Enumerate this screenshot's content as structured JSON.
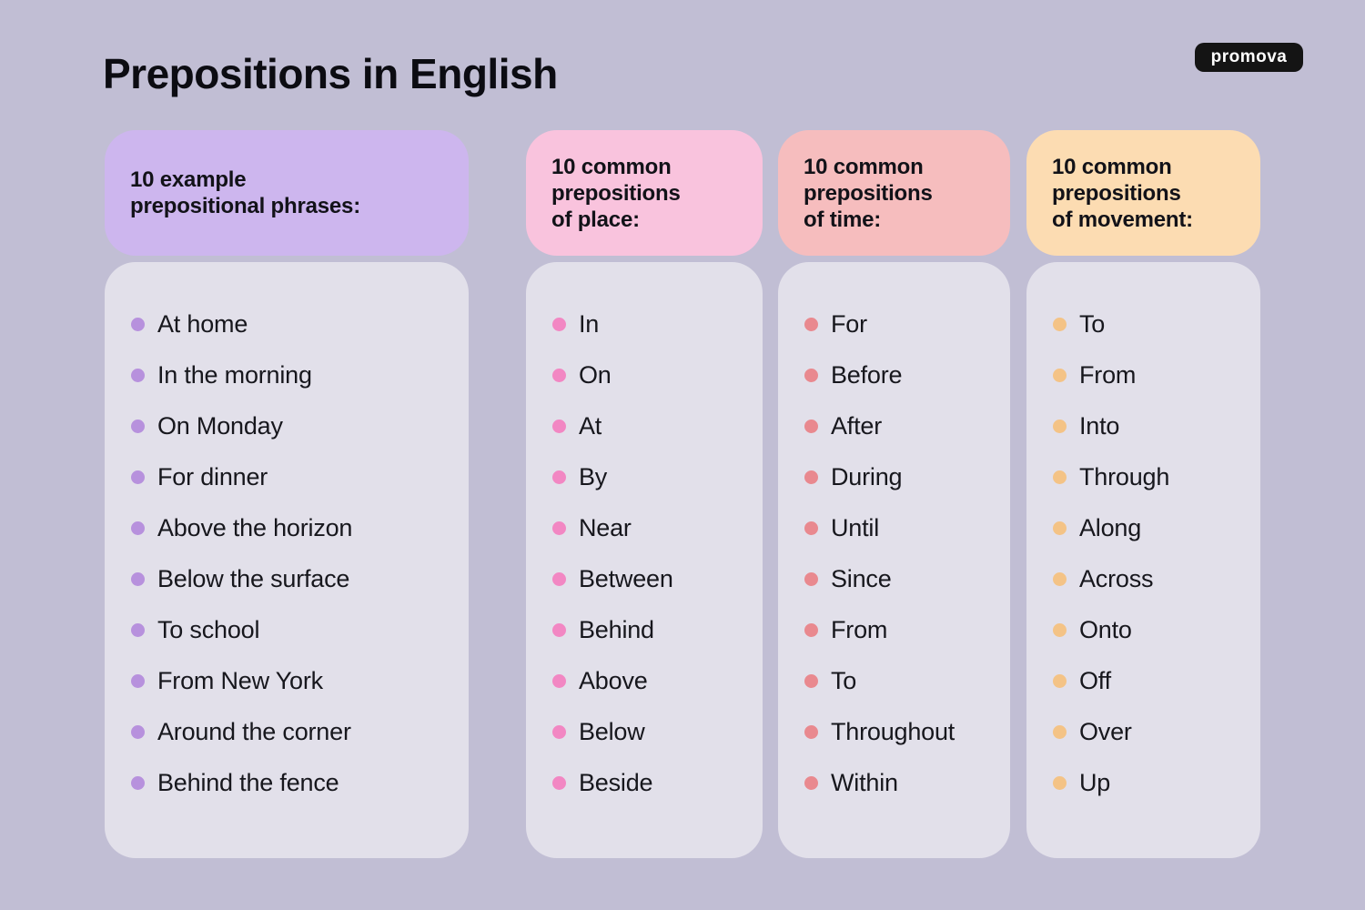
{
  "page": {
    "title": "Prepositions in English",
    "background_color": "#c1bed4",
    "panel_color": "#e2e0ea"
  },
  "logo": {
    "text": "promova",
    "bg_color": "#141414",
    "text_color": "#ffffff"
  },
  "columns": [
    {
      "id": "example-prepositional-phrases",
      "header": "10 example\nprepositional phrases:",
      "header_bg": "#cdb6ee",
      "bullet_color": "#b791dd",
      "items": [
        "At home",
        "In the morning",
        "On Monday",
        "For dinner",
        "Above the horizon",
        "Below the surface",
        "To school",
        "From New York",
        "Around the corner",
        "Behind the fence"
      ]
    },
    {
      "id": "prepositions-of-place",
      "header": "10 common\nprepositions\nof place:",
      "header_bg": "#f9c3dd",
      "bullet_color": "#f287c3",
      "items": [
        "In",
        "On",
        "At",
        "By",
        "Near",
        "Between",
        "Behind",
        "Above",
        "Below",
        "Beside"
      ]
    },
    {
      "id": "prepositions-of-time",
      "header": "10 common\nprepositions\nof time:",
      "header_bg": "#f6bdbe",
      "bullet_color": "#e9898f",
      "items": [
        "For",
        "Before",
        "After",
        "During",
        "Until",
        "Since",
        "From",
        "To",
        "Throughout",
        "Within"
      ]
    },
    {
      "id": "prepositions-of-movement",
      "header": "10 common\nprepositions\nof movement:",
      "header_bg": "#fcdcb2",
      "bullet_color": "#f4c386",
      "items": [
        "To",
        "From",
        "Into",
        "Through",
        "Along",
        "Across",
        "Onto",
        "Off",
        "Over",
        "Up"
      ]
    }
  ]
}
